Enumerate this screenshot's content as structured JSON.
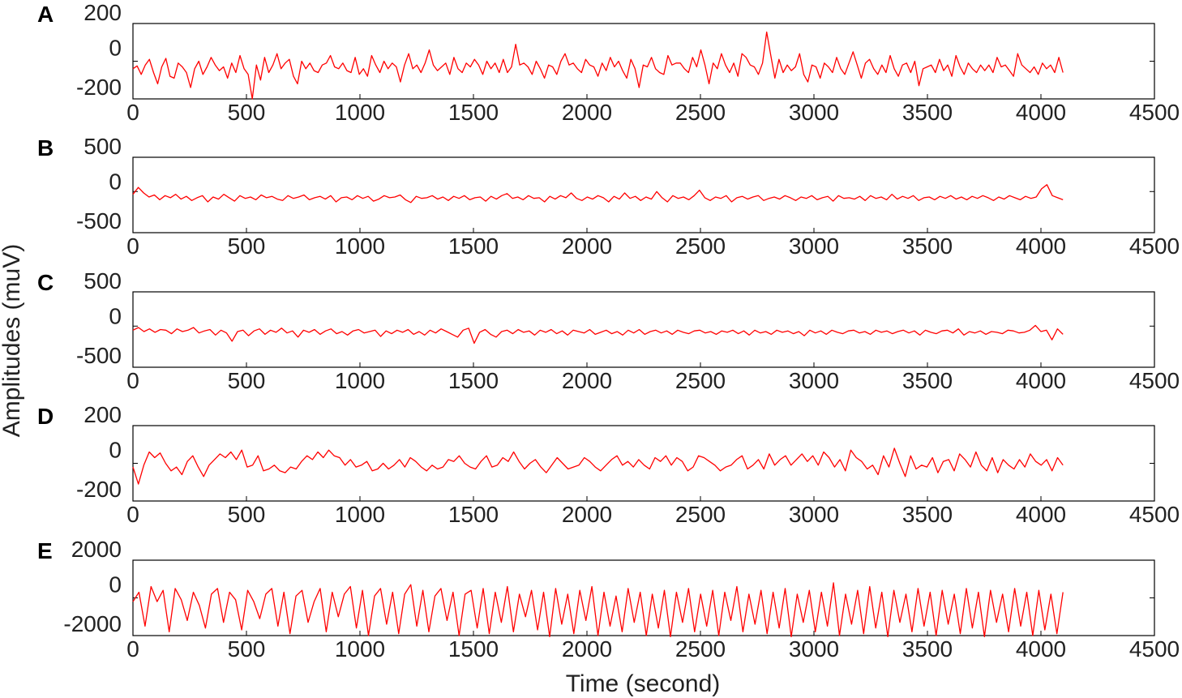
{
  "figure": {
    "ylabel": "Amplitudes (muV)",
    "xlabel": "Time (second)"
  },
  "style": {
    "trace_color": "#ff0000",
    "axis_color": "#000000",
    "text_color": "#222222"
  },
  "chart_data": [
    {
      "type": "line",
      "panel": "A",
      "xlim": [
        0,
        4500
      ],
      "x_ticks": [
        "0",
        "500",
        "1000",
        "1500",
        "2000",
        "2500",
        "3000",
        "3500",
        "4000",
        "4500"
      ],
      "ylim": [
        -200,
        200
      ],
      "y_ticks": [
        "200",
        "0",
        "-200"
      ],
      "grid": false,
      "series": [
        {
          "x_range": [
            0,
            4097
          ],
          "approx_range": [
            -210,
            155
          ],
          "values": [
            -40,
            -25,
            -70,
            -20,
            10,
            -60,
            -120,
            -30,
            15,
            -80,
            -90,
            -10,
            -30,
            -60,
            -140,
            -40,
            0,
            -70,
            -30,
            20,
            -20,
            -50,
            -30,
            -90,
            -10,
            -60,
            30,
            -40,
            -70,
            -200,
            -20,
            -100,
            20,
            -60,
            -20,
            40,
            -40,
            -10,
            10,
            -80,
            -120,
            0,
            -40,
            -10,
            -50,
            -60,
            -20,
            -10,
            30,
            -30,
            -40,
            -10,
            -50,
            -60,
            20,
            -70,
            -40,
            -80,
            30,
            -20,
            -60,
            0,
            -40,
            -10,
            -30,
            -110,
            -20,
            40,
            -40,
            -20,
            -60,
            -10,
            60,
            -20,
            -50,
            -30,
            -10,
            -70,
            20,
            -40,
            -60,
            -10,
            -30,
            10,
            -20,
            -70,
            0,
            -40,
            -10,
            -60,
            10,
            -60,
            -30,
            90,
            -20,
            -10,
            -30,
            -70,
            0,
            -40,
            -90,
            -20,
            -30,
            -70,
            0,
            40,
            -20,
            -10,
            -40,
            -60,
            10,
            -20,
            -30,
            -80,
            -10,
            -50,
            20,
            -30,
            0,
            -50,
            -90,
            10,
            -40,
            -140,
            -20,
            -30,
            20,
            -40,
            -60,
            -70,
            30,
            -20,
            -10,
            -10,
            -40,
            -60,
            20,
            -30,
            60,
            -20,
            -120,
            -10,
            -40,
            40,
            -20,
            -60,
            -10,
            -80,
            40,
            20,
            -20,
            -30,
            -70,
            -10,
            155,
            30,
            -90,
            10,
            -60,
            -20,
            -50,
            -30,
            40,
            -70,
            -110,
            -20,
            -30,
            -90,
            -10,
            -30,
            -60,
            20,
            -40,
            -70,
            -10,
            50,
            -20,
            -90,
            -10,
            10,
            -40,
            -70,
            -20,
            -60,
            30,
            -40,
            -80,
            -20,
            -10,
            -60,
            0,
            -130,
            -40,
            -30,
            -20,
            -60,
            10,
            -50,
            -20,
            -80,
            30,
            -30,
            -70,
            -10,
            -40,
            -60,
            -20,
            -50,
            -20,
            -60,
            20,
            -30,
            -20,
            -50,
            -80,
            40,
            -20,
            -40,
            -60,
            -30,
            -70,
            -10,
            -40,
            -20,
            -60,
            20,
            -60
          ]
        }
      ]
    },
    {
      "type": "line",
      "panel": "B",
      "xlim": [
        0,
        4500
      ],
      "x_ticks": [
        "0",
        "500",
        "1000",
        "1500",
        "2000",
        "2500",
        "3000",
        "3500",
        "4000",
        "4500"
      ],
      "ylim": [
        -600,
        500
      ],
      "y_ticks": [
        "500",
        "0",
        "-500"
      ],
      "grid": false,
      "series": [
        {
          "x_range": [
            0,
            4097
          ],
          "approx_range": [
            -250,
            230
          ],
          "values": [
            -40,
            60,
            -20,
            -80,
            -50,
            -120,
            -60,
            -90,
            -40,
            -110,
            -70,
            -130,
            -90,
            -60,
            -150,
            -80,
            -110,
            -40,
            -90,
            -140,
            -60,
            -100,
            -80,
            -120,
            -50,
            -90,
            -70,
            -110,
            -130,
            -60,
            -100,
            -80,
            -50,
            -120,
            -90,
            -70,
            -110,
            -60,
            -150,
            -90,
            -80,
            -120,
            -60,
            -100,
            -70,
            -140,
            -110,
            -60,
            -90,
            -80,
            -50,
            -120,
            -160,
            -70,
            -100,
            -90,
            -60,
            -110,
            -80,
            -130,
            -70,
            -100,
            -60,
            -120,
            -90,
            -80,
            -140,
            -70,
            -110,
            -60,
            -30,
            -100,
            -80,
            -120,
            -60,
            -100,
            -90,
            -150,
            -70,
            -110,
            -60,
            -90,
            -20,
            -100,
            -130,
            -80,
            -110,
            -60,
            -90,
            -150,
            -70,
            -110,
            -20,
            -100,
            -70,
            -130,
            -80,
            -110,
            0,
            -90,
            -150,
            -60,
            -100,
            -80,
            -120,
            -60,
            20,
            -90,
            -130,
            -80,
            -100,
            -60,
            -150,
            -90,
            -70,
            -110,
            -80,
            -60,
            -130,
            -100,
            -80,
            -110,
            -60,
            -90,
            -130,
            -80,
            -100,
            -60,
            -120,
            -90,
            -70,
            -140,
            -60,
            -100,
            -90,
            -110,
            -70,
            -130,
            -60,
            -100,
            -80,
            -120,
            -40,
            -110,
            -70,
            -100,
            -60,
            -130,
            -90,
            -80,
            -120,
            -70,
            -100,
            -60,
            -110,
            -80,
            -120,
            -70,
            -100,
            -60,
            -90,
            -130,
            -80,
            -110,
            -60,
            -90,
            -120,
            -70,
            -100,
            -80,
            40,
            100,
            -60,
            -90,
            -120
          ]
        }
      ]
    },
    {
      "type": "line",
      "panel": "C",
      "xlim": [
        0,
        4500
      ],
      "x_ticks": [
        "0",
        "500",
        "1000",
        "1500",
        "2000",
        "2500",
        "3000",
        "3500",
        "4000",
        "4500"
      ],
      "ylim": [
        -600,
        500
      ],
      "y_ticks": [
        "500",
        "0",
        "-500"
      ],
      "grid": false,
      "series": [
        {
          "x_range": [
            0,
            4097
          ],
          "approx_range": [
            -350,
            90
          ],
          "values": [
            -60,
            -20,
            -80,
            -40,
            -90,
            -50,
            -60,
            -110,
            -40,
            -80,
            -60,
            -20,
            -100,
            -70,
            -50,
            -130,
            -60,
            -100,
            -220,
            -80,
            -60,
            -140,
            -70,
            -40,
            -120,
            -60,
            -90,
            -30,
            -100,
            -70,
            -160,
            -60,
            -90,
            -50,
            -120,
            -70,
            -40,
            -110,
            -80,
            -130,
            -70,
            -50,
            -100,
            -80,
            -60,
            -150,
            -70,
            -110,
            -60,
            -90,
            -50,
            -120,
            -80,
            -130,
            -60,
            -100,
            -40,
            -80,
            -120,
            -160,
            -60,
            -30,
            -250,
            -90,
            -50,
            -120,
            -160,
            -80,
            -60,
            -110,
            -50,
            -90,
            -70,
            -130,
            -60,
            -90,
            -50,
            -110,
            -70,
            -130,
            -60,
            -80,
            -100,
            -50,
            -120,
            -90,
            -60,
            -110,
            -80,
            -130,
            -60,
            -100,
            -50,
            -120,
            -80,
            -60,
            -100,
            -70,
            -120,
            -60,
            -90,
            -110,
            -70,
            -60,
            -100,
            -80,
            -120,
            -70,
            -90,
            -60,
            -110,
            -70,
            -130,
            -60,
            -100,
            -80,
            -120,
            -60,
            -90,
            -70,
            -110,
            -80,
            -140,
            -60,
            -100,
            -70,
            -120,
            -60,
            -90,
            -110,
            -70,
            -60,
            -100,
            -80,
            -120,
            -60,
            -90,
            -70,
            -110,
            -80,
            -60,
            -100,
            -70,
            -130,
            -60,
            -90,
            -110,
            -70,
            -60,
            -100,
            -40,
            -130,
            -80,
            -100,
            -70,
            -120,
            -80,
            -90,
            -110,
            -60,
            -70,
            -100,
            -90,
            -60,
            10,
            -80,
            -60,
            -200,
            -40,
            -120
          ]
        }
      ]
    },
    {
      "type": "line",
      "panel": "D",
      "xlim": [
        0,
        4500
      ],
      "x_ticks": [
        "0",
        "500",
        "1000",
        "1500",
        "2000",
        "2500",
        "3000",
        "3500",
        "4000",
        "4500"
      ],
      "ylim": [
        -200,
        200
      ],
      "y_ticks": [
        "200",
        "0",
        "-200"
      ],
      "grid": false,
      "series": [
        {
          "x_range": [
            0,
            4097
          ],
          "approx_range": [
            -110,
            90
          ],
          "values": [
            -20,
            -110,
            -10,
            60,
            30,
            55,
            0,
            -40,
            -20,
            -60,
            10,
            40,
            -20,
            -70,
            -10,
            20,
            50,
            30,
            60,
            20,
            70,
            -20,
            -10,
            40,
            -40,
            -30,
            -10,
            -40,
            -50,
            -20,
            -30,
            10,
            40,
            20,
            60,
            30,
            70,
            40,
            30,
            -10,
            20,
            -20,
            -10,
            10,
            -40,
            -30,
            0,
            -30,
            -10,
            20,
            -20,
            30,
            10,
            -20,
            -40,
            -10,
            -30,
            -20,
            20,
            10,
            40,
            0,
            -20,
            -30,
            10,
            40,
            -20,
            -10,
            30,
            10,
            60,
            10,
            -30,
            0,
            20,
            -20,
            -50,
            -10,
            30,
            0,
            -30,
            -20,
            -10,
            30,
            10,
            -20,
            -40,
            -10,
            20,
            40,
            -10,
            10,
            -20,
            20,
            -10,
            -30,
            30,
            10,
            40,
            -10,
            30,
            10,
            -40,
            -20,
            40,
            30,
            10,
            -10,
            -40,
            -20,
            -10,
            20,
            40,
            -30,
            -10,
            20,
            -30,
            50,
            -10,
            20,
            40,
            -10,
            20,
            50,
            10,
            40,
            -10,
            60,
            30,
            -20,
            20,
            -40,
            70,
            30,
            10,
            -30,
            -10,
            -60,
            40,
            -20,
            80,
            0,
            -70,
            40,
            -30,
            -10,
            -20,
            30,
            -50,
            10,
            20,
            -40,
            50,
            20,
            -20,
            60,
            -10,
            -40,
            30,
            -50,
            20,
            -10,
            -30,
            20,
            -20,
            50,
            10,
            -10,
            20,
            -40,
            30,
            -10
          ]
        }
      ]
    },
    {
      "type": "line",
      "panel": "E",
      "xlim": [
        0,
        4500
      ],
      "x_ticks": [
        "0",
        "500",
        "1000",
        "1500",
        "2000",
        "2500",
        "3000",
        "3500",
        "4000",
        "4500"
      ],
      "ylim": [
        -2000,
        2000
      ],
      "y_ticks": [
        "2000",
        "0",
        "-2000"
      ],
      "grid": false,
      "series": [
        {
          "x_range": [
            0,
            4097
          ],
          "approx_range": [
            -2200,
            900
          ],
          "values": [
            -200,
            300,
            -1500,
            600,
            -200,
            400,
            -1800,
            500,
            -100,
            -1200,
            300,
            -400,
            -1600,
            200,
            500,
            -1300,
            300,
            -100,
            -1700,
            400,
            -200,
            -1100,
            200,
            500,
            -1500,
            300,
            -1900,
            100,
            400,
            -1300,
            -200,
            500,
            -1800,
            300,
            -1000,
            200,
            600,
            -1600,
            400,
            -2000,
            100,
            500,
            -1400,
            300,
            -1900,
            200,
            700,
            -1500,
            400,
            -1800,
            100,
            500,
            -1200,
            300,
            -2000,
            200,
            400,
            -1600,
            500,
            -1900,
            300,
            -1300,
            600,
            -1800,
            200,
            -1000,
            400,
            -1700,
            300,
            -2100,
            500,
            -1400,
            200,
            -1900,
            400,
            -1200,
            600,
            -2000,
            300,
            -1500,
            100,
            -1800,
            500,
            -1300,
            300,
            -2000,
            200,
            -1600,
            400,
            -2100,
            300,
            -1300,
            500,
            -1800,
            200,
            -1500,
            400,
            -2000,
            300,
            -1200,
            600,
            -1800,
            200,
            -1400,
            400,
            -1900,
            300,
            -1600,
            500,
            -2100,
            200,
            -1300,
            400,
            -1800,
            300,
            -1500,
            800,
            -2000,
            200,
            -1400,
            400,
            -1900,
            600,
            -1600,
            300,
            -2200,
            400,
            -1300,
            200,
            -1800,
            500,
            -1500,
            300,
            -2000,
            400,
            -1400,
            200,
            -1900,
            500,
            -1600,
            300,
            -2100,
            400,
            -1300,
            200,
            -1800,
            500,
            -1500,
            300,
            -2000,
            400,
            -1700,
            200,
            -1900,
            300
          ]
        }
      ]
    }
  ]
}
